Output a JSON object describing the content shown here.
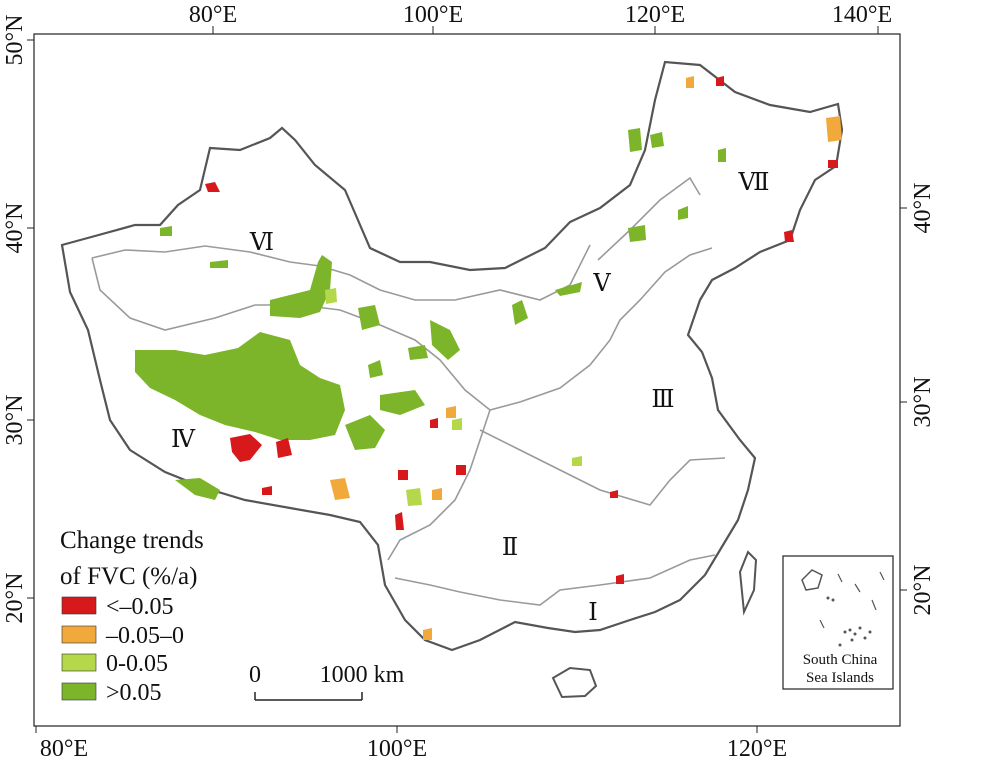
{
  "map": {
    "top_axis_labels": [
      "80°E",
      "100°E",
      "120°E",
      "140°E"
    ],
    "bottom_axis_labels": [
      "80°E",
      "100°E",
      "120°E"
    ],
    "left_axis_labels": [
      "50°N",
      "40°N",
      "30°N",
      "20°N"
    ],
    "right_axis_labels": [
      "40°N",
      "30°N",
      "20°N"
    ],
    "regions": [
      "Ⅰ",
      "Ⅱ",
      "Ⅲ",
      "Ⅳ",
      "Ⅴ",
      "Ⅵ",
      "Ⅶ"
    ]
  },
  "legend": {
    "title_line1": "Change trends",
    "title_line2": "of FVC (%/a)",
    "items": [
      {
        "label": "<–0.05",
        "color": "#d7191c"
      },
      {
        "label": "–0.05–0",
        "color": "#f2a93b"
      },
      {
        "label": "0-0.05",
        "color": "#b5d84a"
      },
      {
        "label": ">0.05",
        "color": "#7cb52a"
      }
    ]
  },
  "scale_bar": {
    "start_label": "0",
    "end_label": "1000 km"
  },
  "inset": {
    "label_line1": "South China",
    "label_line2": "Sea Islands"
  }
}
